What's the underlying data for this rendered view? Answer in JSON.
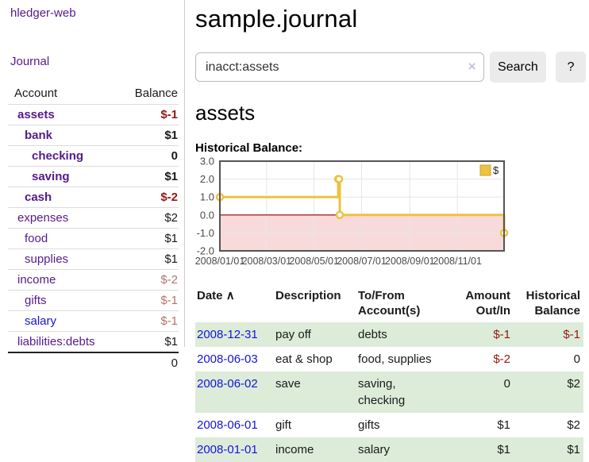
{
  "colors": {
    "link_purple": "#551a8b",
    "link_blue": "#1414dc",
    "negative_strong": "#8f1a14",
    "negative_soft": "#b5736b",
    "row_green": "#dcecd9",
    "chart_yellow": "#edc240",
    "chart_negative_fill": "#f9dada",
    "chart_zero_line": "#8b0000"
  },
  "sidebar": {
    "brand": "hledger-web",
    "nav_journal": "Journal",
    "accounts_table": {
      "header_account": "Account",
      "header_balance": "Balance",
      "rows": [
        {
          "account": "assets",
          "balance": "$-1",
          "depth": 1,
          "bold": true,
          "amount_style": "neg-strong",
          "link_color": "purple"
        },
        {
          "account": "bank",
          "balance": "$1",
          "depth": 2,
          "bold": true,
          "amount_style": "normal",
          "link_color": "purple"
        },
        {
          "account": "checking",
          "balance": "0",
          "depth": 3,
          "bold": true,
          "amount_style": "normal",
          "link_color": "purple"
        },
        {
          "account": "saving",
          "balance": "$1",
          "depth": 3,
          "bold": true,
          "amount_style": "normal",
          "link_color": "purple"
        },
        {
          "account": "cash",
          "balance": "$-2",
          "depth": 2,
          "bold": true,
          "amount_style": "neg-strong",
          "link_color": "purple"
        },
        {
          "account": "expenses",
          "balance": "$2",
          "depth": 1,
          "bold": false,
          "amount_style": "normal",
          "link_color": "purple"
        },
        {
          "account": "food",
          "balance": "$1",
          "depth": 2,
          "bold": false,
          "amount_style": "normal",
          "link_color": "purple"
        },
        {
          "account": "supplies",
          "balance": "$1",
          "depth": 2,
          "bold": false,
          "amount_style": "normal",
          "link_color": "purple"
        },
        {
          "account": "income",
          "balance": "$-2",
          "depth": 1,
          "bold": false,
          "amount_style": "neg-soft",
          "link_color": "purple"
        },
        {
          "account": "gifts",
          "balance": "$-1",
          "depth": 2,
          "bold": false,
          "amount_style": "neg-soft",
          "link_color": "purple"
        },
        {
          "account": "salary",
          "balance": "$-1",
          "depth": 2,
          "bold": false,
          "amount_style": "neg-soft",
          "link_color": "blue"
        },
        {
          "account": "liabilities:debts",
          "balance": "$1",
          "depth": 1,
          "bold": false,
          "amount_style": "normal",
          "link_color": "purple"
        }
      ],
      "total": "0"
    }
  },
  "main": {
    "title": "sample.journal",
    "account_heading": "assets",
    "chart_label": "Historical Balance:"
  },
  "search": {
    "value": "inacct:assets",
    "clear_icon": "×",
    "button_label": "Search",
    "help_label": "?"
  },
  "chart_data": {
    "type": "line",
    "step": true,
    "title": "Historical Balance:",
    "series": [
      {
        "name": "$",
        "color": "#edc240",
        "points": [
          [
            "2008-01-01",
            1
          ],
          [
            "2008-06-01",
            2
          ],
          [
            "2008-06-02",
            2
          ],
          [
            "2008-06-03",
            0
          ],
          [
            "2008-12-31",
            -1
          ]
        ]
      }
    ],
    "xlim": [
      "2008-01-01",
      "2008-12-31"
    ],
    "ylim": [
      -2,
      3
    ],
    "yticks": [
      "3.0",
      "2.0",
      "1.0",
      "0.0",
      "-1.0",
      "-2.0"
    ],
    "xticks": [
      {
        "date": "2008-01-01",
        "label": "2008/01/01"
      },
      {
        "date": "2008-03-01",
        "label": "2008/03/01"
      },
      {
        "date": "2008-05-01",
        "label": "2008/05/01"
      },
      {
        "date": "2008-07-01",
        "label": "2008/07/01"
      },
      {
        "date": "2008-09-01",
        "label": "2008/09/01"
      },
      {
        "date": "2008-11-01",
        "label": "2008/11/01"
      }
    ],
    "grid": true,
    "negative_region": {
      "from": 0,
      "fill": "#f9dada",
      "line": "#8b0000"
    },
    "legend": {
      "label": "$",
      "position": "top-right"
    }
  },
  "register": {
    "sort_icon": "∧",
    "headers": {
      "date": "Date",
      "description": "Description",
      "account": "To/From Account(s)",
      "amount": "Amount Out/In",
      "balance": "Historical Balance"
    },
    "rows": [
      {
        "date": "2008-12-31",
        "description": "pay off",
        "accounts": "debts",
        "amount": "$-1",
        "balance": "$-1",
        "amount_neg": true,
        "balance_neg": true,
        "green": true
      },
      {
        "date": "2008-06-03",
        "description": "eat & shop",
        "accounts": "food, supplies",
        "amount": "$-2",
        "balance": "0",
        "amount_neg": true,
        "balance_neg": false,
        "green": false
      },
      {
        "date": "2008-06-02",
        "description": "save",
        "accounts": "saving, checking",
        "amount": "0",
        "balance": "$2",
        "amount_neg": false,
        "balance_neg": false,
        "green": true
      },
      {
        "date": "2008-06-01",
        "description": "gift",
        "accounts": "gifts",
        "amount": "$1",
        "balance": "$2",
        "amount_neg": false,
        "balance_neg": false,
        "green": false
      },
      {
        "date": "2008-01-01",
        "description": "income",
        "accounts": "salary",
        "amount": "$1",
        "balance": "$1",
        "amount_neg": false,
        "balance_neg": false,
        "green": true
      }
    ]
  }
}
